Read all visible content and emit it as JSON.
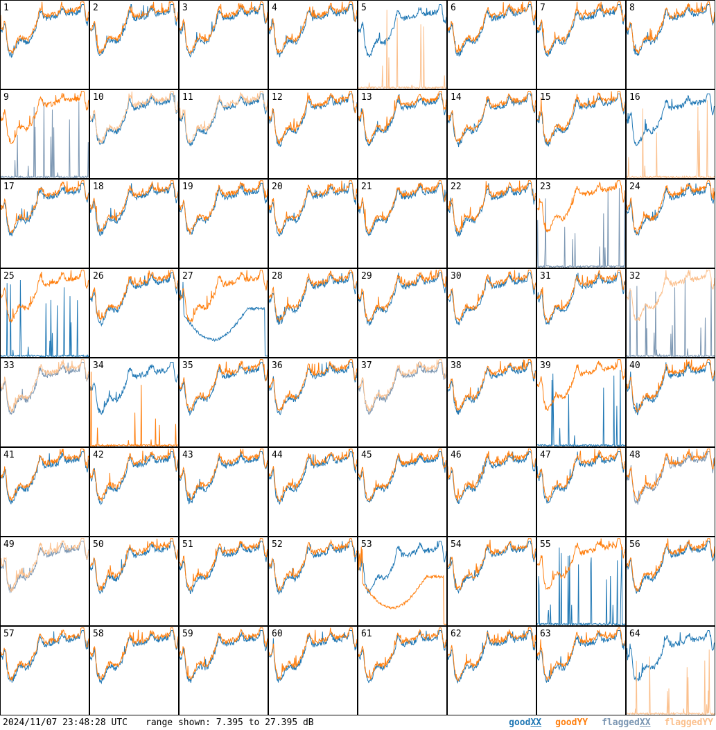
{
  "chart_data": {
    "type": "line",
    "panel_labels": [
      "1",
      "2",
      "3",
      "4",
      "5",
      "6",
      "7",
      "8",
      "9",
      "10",
      "11",
      "12",
      "13",
      "14",
      "15",
      "16",
      "17",
      "18",
      "19",
      "20",
      "21",
      "22",
      "23",
      "24",
      "25",
      "26",
      "27",
      "28",
      "29",
      "30",
      "31",
      "32",
      "33",
      "34",
      "35",
      "36",
      "37",
      "38",
      "39",
      "40",
      "41",
      "42",
      "43",
      "44",
      "45",
      "46",
      "47",
      "48",
      "49",
      "50",
      "51",
      "52",
      "53",
      "54",
      "55",
      "56",
      "57",
      "58",
      "59",
      "60",
      "61",
      "62",
      "63",
      "64"
    ],
    "panel_states": {
      "5": {
        "xx": "good",
        "yy": "flagged",
        "yy_spiky": true
      },
      "9": {
        "xx": "flagged",
        "yy": "good",
        "xx_spiky": true
      },
      "10": {
        "xx": "good",
        "yy": "flagged"
      },
      "11": {
        "xx": "good",
        "yy": "flagged"
      },
      "16": {
        "xx": "good",
        "yy": "flagged",
        "yy_spiky": true
      },
      "23": {
        "xx": "flagged",
        "yy": "good",
        "xx_spiky": true
      },
      "25": {
        "xx": "good",
        "yy": "good",
        "xx_spiky": true
      },
      "27": {
        "xx": "good",
        "yy": "good",
        "xx_arch": true
      },
      "32": {
        "xx": "flagged",
        "yy": "flagged",
        "xx_spiky": true
      },
      "33": {
        "xx": "flagged",
        "yy": "flagged"
      },
      "34": {
        "xx": "good",
        "yy": "good",
        "yy_spiky": true
      },
      "37": {
        "xx": "flagged",
        "yy": "flagged"
      },
      "39": {
        "xx": "good",
        "yy": "good",
        "xx_spiky": true
      },
      "48": {
        "xx": "flagged",
        "yy": "good"
      },
      "49": {
        "xx": "flagged",
        "yy": "flagged"
      },
      "53": {
        "xx": "good",
        "yy": "good",
        "yy_arch": true
      },
      "55": {
        "xx": "good",
        "yy": "good",
        "xx_spiky": true
      },
      "64": {
        "xx": "good",
        "yy": "flagged",
        "yy_spiky": true
      }
    },
    "colors": {
      "good_xx": "#1f77b4",
      "good_yy": "#ff7f0e",
      "flagged_xx": "#7b96b2",
      "flagged_yy": "#fbc08d"
    },
    "range_db": [
      7.395,
      27.395
    ]
  },
  "footer": {
    "timestamp": "2024/11/07 23:48:28 UTC",
    "range_text": "range shown: 7.395 to 27.395 dB",
    "legend_good": "good ",
    "legend_flagged": "flagged ",
    "legend_xx": "XX",
    "legend_yy": "YY"
  }
}
